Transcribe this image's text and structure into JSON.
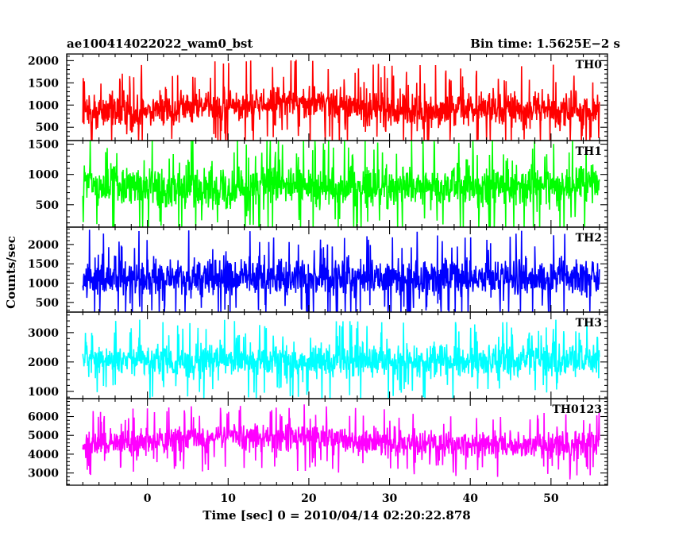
{
  "header": {
    "left_title": "ae100414022022_wam0_bst",
    "right_title": "Bin time: 1.5625E−2 s"
  },
  "chart_data": {
    "type": "line",
    "title": "ae100414022022_wam0_bst",
    "subtitle": "Bin time: 1.5625E−2 s",
    "xlabel": "Time [sec] 0 = 2010/04/14 02:20:22.878",
    "ylabel": "Counts/sec",
    "xlim": [
      -10,
      57
    ],
    "x_data_range": [
      -8,
      56
    ],
    "x_ticks": [
      0,
      10,
      20,
      30,
      40,
      50
    ],
    "x_tick_labels": [
      "0",
      "10",
      "20",
      "30",
      "40",
      "50"
    ],
    "bin_time_s": 0.015625,
    "grid": false,
    "panels": [
      {
        "name": "TH0",
        "color": "#ff0000",
        "ylim": [
          200,
          2150
        ],
        "y_ticks": [
          500,
          1000,
          1500,
          2000
        ],
        "y_tick_labels": [
          "500",
          "1000",
          "1500",
          "2000"
        ],
        "typical_range": [
          260,
          1650
        ],
        "profile": {
          "x": [
            -8,
            0,
            5,
            10,
            15,
            20,
            23,
            25,
            30,
            35,
            40,
            45,
            50,
            56
          ],
          "mean": [
            820,
            880,
            950,
            1000,
            1020,
            1040,
            1050,
            960,
            900,
            880,
            900,
            900,
            880,
            860
          ]
        },
        "spread": 520
      },
      {
        "name": "TH1",
        "color": "#00ff00",
        "ylim": [
          130,
          1560
        ],
        "y_ticks": [
          500,
          1000,
          1500
        ],
        "y_tick_labels": [
          "500",
          "1000",
          "1500"
        ],
        "typical_range": [
          180,
          1450
        ],
        "profile": {
          "x": [
            -8,
            56
          ],
          "mean": [
            800,
            800
          ]
        },
        "spread": 440
      },
      {
        "name": "TH2",
        "color": "#0000ff",
        "ylim": [
          250,
          2450
        ],
        "y_ticks": [
          500,
          1000,
          1500,
          2000
        ],
        "y_tick_labels": [
          "500",
          "1000",
          "1500",
          "2000"
        ],
        "typical_range": [
          300,
          2300
        ],
        "profile": {
          "x": [
            -8,
            56
          ],
          "mean": [
            1150,
            1150
          ]
        },
        "spread": 620
      },
      {
        "name": "TH3",
        "color": "#00ffff",
        "ylim": [
          750,
          3700
        ],
        "y_ticks": [
          1000,
          2000,
          3000
        ],
        "y_tick_labels": [
          "1000",
          "2000",
          "3000"
        ],
        "typical_range": [
          850,
          3550
        ],
        "profile": {
          "x": [
            -8,
            56
          ],
          "mean": [
            2050,
            2050
          ]
        },
        "spread": 700
      },
      {
        "name": "TH0123",
        "color": "#ff00ff",
        "ylim": [
          2350,
          6950
        ],
        "y_ticks": [
          3000,
          4000,
          5000,
          6000
        ],
        "y_tick_labels": [
          "3000",
          "4000",
          "5000",
          "6000"
        ],
        "typical_range": [
          2500,
          6850
        ],
        "profile": {
          "x": [
            -8,
            0,
            5,
            10,
            15,
            20,
            25,
            30,
            40,
            50,
            56
          ],
          "mean": [
            4500,
            4700,
            4850,
            4900,
            4900,
            4850,
            4750,
            4600,
            4500,
            4450,
            4400
          ]
        },
        "spread": 900
      }
    ]
  }
}
